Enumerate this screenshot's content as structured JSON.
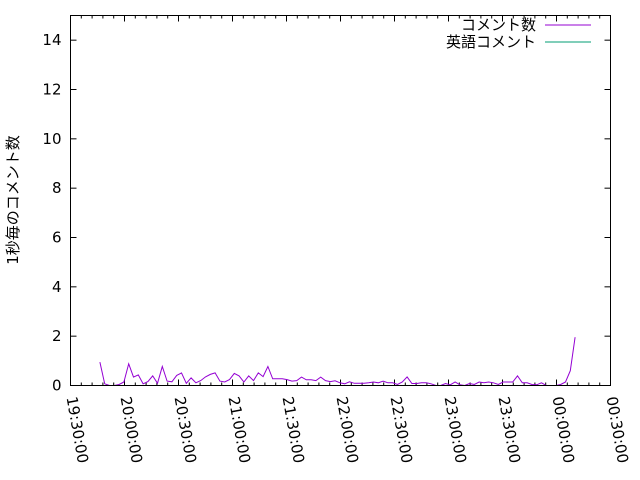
{
  "chart_data": {
    "type": "line",
    "title": "",
    "xlabel": "",
    "ylabel": "1秒毎のコメント数",
    "xlim": [
      "19:30:00",
      "00:30:00"
    ],
    "ylim": [
      0,
      15
    ],
    "x_tick_labels": [
      "19:30:00",
      "20:00:00",
      "20:30:00",
      "21:00:00",
      "21:30:00",
      "22:00:00",
      "22:30:00",
      "23:00:00",
      "23:30:00",
      "00:00:00",
      "00:30:00"
    ],
    "y_tick_labels": [
      "0",
      "2",
      "4",
      "6",
      "8",
      "10",
      "12",
      "14"
    ],
    "grid": false,
    "legend_position": "top-right",
    "x": [
      "19:46:20",
      "19:49:00",
      "19:51:40",
      "19:54:20",
      "19:57:00",
      "19:59:40",
      "20:02:20",
      "20:05:00",
      "20:07:40",
      "20:10:20",
      "20:13:00",
      "20:15:40",
      "20:18:20",
      "20:21:00",
      "20:23:40",
      "20:26:20",
      "20:29:00",
      "20:31:40",
      "20:34:20",
      "20:37:00",
      "20:39:40",
      "20:42:20",
      "20:45:00",
      "20:47:40",
      "20:50:20",
      "20:53:00",
      "20:55:40",
      "20:58:20",
      "21:01:00",
      "21:03:40",
      "21:06:20",
      "21:09:00",
      "21:11:40",
      "21:14:20",
      "21:17:00",
      "21:19:40",
      "21:22:20",
      "21:25:00",
      "21:27:40",
      "21:30:20",
      "21:33:00",
      "21:35:40",
      "21:38:20",
      "21:41:00",
      "21:43:40",
      "21:46:20",
      "21:49:00",
      "21:51:40",
      "21:54:20",
      "21:57:00",
      "21:59:40",
      "22:02:20",
      "22:05:00",
      "22:07:40",
      "22:10:20",
      "22:13:00",
      "22:15:40",
      "22:18:20",
      "22:21:00",
      "22:23:40",
      "22:26:20",
      "22:29:00",
      "22:31:40",
      "22:34:20",
      "22:37:00",
      "22:39:40",
      "22:42:20",
      "22:45:00",
      "22:47:40",
      "22:50:20",
      "22:53:00",
      "22:55:40",
      "22:58:20",
      "23:01:00",
      "23:03:40",
      "23:06:20",
      "23:09:00",
      "23:11:40",
      "23:14:20",
      "23:17:00",
      "23:19:40",
      "23:22:20",
      "23:25:00",
      "23:27:40",
      "23:30:20",
      "23:33:00",
      "23:35:40",
      "23:38:20",
      "23:41:00",
      "23:43:40",
      "23:46:20",
      "23:49:00",
      "23:51:40",
      "23:54:20",
      "23:57:00",
      "23:59:40",
      "00:02:20",
      "00:05:00",
      "00:07:40",
      "00:10:20"
    ],
    "series": [
      {
        "name": "コメント数",
        "color": "#9400d3",
        "values": [
          0.95,
          0.07,
          0,
          0,
          0.04,
          0.14,
          0.88,
          0.34,
          0.43,
          0.07,
          0.16,
          0.39,
          0.09,
          0.77,
          0.18,
          0.15,
          0.41,
          0.51,
          0.09,
          0.31,
          0.11,
          0.2,
          0.35,
          0.45,
          0.51,
          0.18,
          0.14,
          0.24,
          0.49,
          0.39,
          0.14,
          0.39,
          0.2,
          0.51,
          0.36,
          0.77,
          0.27,
          0.27,
          0.27,
          0.24,
          0.18,
          0.2,
          0.34,
          0.23,
          0.23,
          0.2,
          0.34,
          0.2,
          0.16,
          0.19,
          0.11,
          0.07,
          0.15,
          0.09,
          0.09,
          0.09,
          0.11,
          0.14,
          0.11,
          0.18,
          0.11,
          0.11,
          0.04,
          0.14,
          0.35,
          0.08,
          0.08,
          0.11,
          0.11,
          0.07,
          0,
          0,
          0.08,
          0.03,
          0.14,
          0.03,
          0,
          0.08,
          0.04,
          0.14,
          0.11,
          0.14,
          0.11,
          0.04,
          0.14,
          0.14,
          0.14,
          0.39,
          0.11,
          0.11,
          0.04,
          0.03,
          0.11,
          0,
          0,
          0,
          0.04,
          0.14,
          0.6,
          1.96
        ]
      },
      {
        "name": "英語コメント",
        "color": "#009e73",
        "values": [
          0,
          0,
          0,
          0,
          0,
          0,
          0,
          0,
          0,
          0,
          0,
          0,
          0,
          0,
          0,
          0,
          0,
          0,
          0,
          0,
          0,
          0,
          0,
          0,
          0,
          0,
          0,
          0,
          0,
          0,
          0,
          0,
          0,
          0,
          0,
          0,
          0,
          0,
          0,
          0,
          0,
          0,
          0,
          0,
          0,
          0,
          0,
          0,
          0,
          0,
          0,
          0,
          0,
          0,
          0,
          0,
          0,
          0,
          0,
          0,
          0,
          0,
          0,
          0,
          0,
          0,
          0,
          0,
          0,
          0,
          0,
          0,
          0,
          0,
          0,
          0,
          0,
          0,
          0,
          0,
          0,
          0,
          0,
          0,
          0,
          0,
          0,
          0,
          0,
          0,
          0,
          0,
          0,
          0,
          0,
          0,
          0,
          0,
          0,
          0
        ]
      }
    ]
  }
}
